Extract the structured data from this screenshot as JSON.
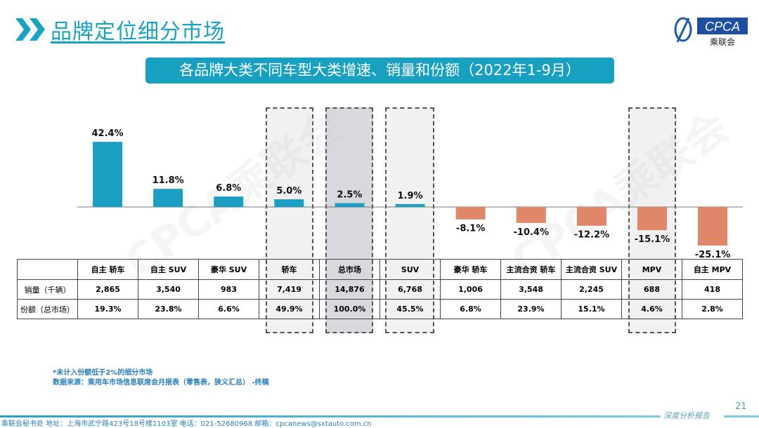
{
  "header": {
    "title": "品牌定位细分市场",
    "logo_text": "CPCA",
    "logo_subtext": "乘联会",
    "logo_small": "CPCA"
  },
  "subtitle": "各品牌大类不同车型大类增速、销量和份额（2022年1-9月）",
  "watermark": "CPCA乘联会",
  "colors": {
    "positive": "#1a9fc2",
    "negative": "#e0876a",
    "accent": "#17a0bf"
  },
  "highlighted_columns": [
    "轿车",
    "总市场",
    "SUV",
    "MPV"
  ],
  "chart_data": {
    "type": "bar",
    "categories": [
      "自主 轿车",
      "自主 SUV",
      "豪华 SUV",
      "轿车",
      "总市场",
      "SUV",
      "豪华 轿车",
      "主流合资 轿车",
      "主流合资 SUV",
      "MPV",
      "自主 MPV"
    ],
    "values": [
      42.4,
      11.8,
      6.8,
      5.0,
      2.5,
      1.9,
      -8.1,
      -10.4,
      -12.2,
      -15.1,
      -25.1
    ],
    "value_labels": [
      "42.4%",
      "11.8%",
      "6.8%",
      "5.0%",
      "2.5%",
      "1.9%",
      "-8.1%",
      "-10.4%",
      "-12.2%",
      "-15.1%",
      "-25.1%"
    ],
    "ylabel": "",
    "xlabel": "",
    "title": "",
    "grid": false
  },
  "table": {
    "rows": [
      {
        "label": "销量（千辆）",
        "values": [
          "2,865",
          "3,540",
          "983",
          "7,419",
          "14,876",
          "6,768",
          "1,006",
          "3,548",
          "2,245",
          "688",
          "418"
        ]
      },
      {
        "label": "份额（总市场）",
        "values": [
          "19.3%",
          "23.8%",
          "6.6%",
          "49.9%",
          "100.0%",
          "45.5%",
          "6.8%",
          "23.9%",
          "15.1%",
          "4.6%",
          "2.8%"
        ]
      }
    ]
  },
  "notes": [
    "*未计入份额低于2%的细分市场",
    "数据来源：乘用车市场信息联席会月报表（零售表，狭义汇总） -终稿"
  ],
  "page_number": "21",
  "footer_tag": "深度分析报告",
  "footer": "乘联会秘书处   地址：上海市武宁路423号18号楼1103室  电话：021-52680968   邮箱：cpcanews@sxtauto.com.cn"
}
